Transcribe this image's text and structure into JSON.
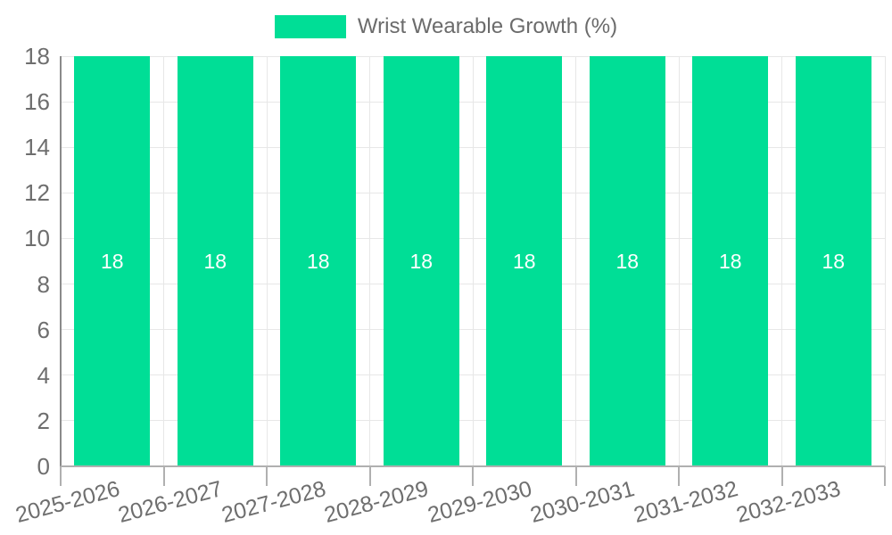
{
  "chart_data": {
    "type": "bar",
    "title": "Wrist Wearable Growth (%)",
    "categories": [
      "2025-2026",
      "2026-2027",
      "2027-2028",
      "2028-2029",
      "2029-2030",
      "2030-2031",
      "2031-2032",
      "2032-2033"
    ],
    "values": [
      18,
      18,
      18,
      18,
      18,
      18,
      18,
      18
    ],
    "value_labels": [
      "18",
      "18",
      "18",
      "18",
      "18",
      "18",
      "18",
      "18"
    ],
    "xlabel": "",
    "ylabel": "",
    "ylim": [
      0,
      18
    ],
    "y_ticks": [
      0,
      2,
      4,
      6,
      8,
      10,
      12,
      14,
      16,
      18
    ],
    "grid": "on",
    "legend_position": "top-center",
    "legend_entries": [
      "Wrist Wearable Growth (%)"
    ],
    "colors": {
      "series": "#00DE96",
      "grid_line": "#e7e7e7",
      "y_axis_line": "#8a8a8a",
      "x_axis_line": "#b0b0b0",
      "tick_label": "#6e6e6e",
      "title_text": "#6b6b6b",
      "value_label": "#ffffff",
      "background": "#ffffff"
    }
  }
}
